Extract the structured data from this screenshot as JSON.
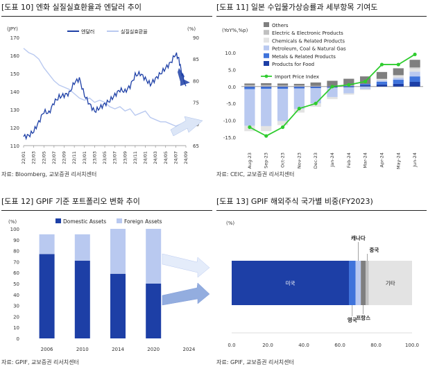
{
  "panels": {
    "p10": {
      "title": "[도표 10] 엔화 실질실효환율과 엔달러 추이",
      "source": "자료: Bloomberg, 교보증권 리서치센터"
    },
    "p11": {
      "title": "[도표 11] 일본 수입물가상승률과 세부항목 기여도",
      "source": "자료: CEIC, 교보증권 리서치센터"
    },
    "p12": {
      "title": "[도표 12] GPIF 기준 포트폴리오 변화 추이",
      "source": "자료: GPIF, 교보증권 리서치센터"
    },
    "p13": {
      "title": "[도표 13] GPIF 해외주식 국가별 비중(FY2023)",
      "source": "자료: GPIF, 교보증권 리서치센터"
    }
  },
  "colors": {
    "navy": "#1d3fa6",
    "light_blue": "#b9c9f0",
    "gray_dark": "#7f7f7f",
    "gray_mid": "#c0c0c0",
    "gray_light": "#e3e3e3",
    "blue_mid": "#3f73db",
    "green": "#2fcc2f",
    "arrow": "#a7bde9"
  },
  "chart_data": [
    {
      "type": "line",
      "id": "p10",
      "ylabel_left": "(JPY)",
      "ylabel_right": "(%)",
      "ylim_left": [
        110,
        170
      ],
      "ylim_right": [
        65,
        90
      ],
      "yticks_left": [
        "110",
        "120",
        "130",
        "140",
        "150",
        "160",
        "170"
      ],
      "yticks_right": [
        "65",
        "70",
        "75",
        "80",
        "85",
        "90"
      ],
      "xticks": [
        "22/01",
        "22/03",
        "22/05",
        "22/07",
        "22/09",
        "22/11",
        "23/01",
        "23/03",
        "23/05",
        "23/07",
        "23/09",
        "23/11",
        "24/01",
        "24/03",
        "24/05",
        "24/07",
        "24/09"
      ],
      "series": [
        {
          "name": "엔달러",
          "axis": "left",
          "x": [
            0,
            0.5,
            1,
            1.5,
            2,
            2.5,
            3,
            3.5,
            4,
            4.5,
            5,
            5.5,
            6,
            6.5,
            7,
            7.5,
            8,
            8.5,
            9,
            9.5,
            10,
            10.5,
            11,
            11.5,
            12,
            12.5,
            13,
            13.5,
            14,
            14.5,
            15,
            15.3,
            15.6,
            16
          ],
          "values": [
            115,
            115.5,
            118,
            123,
            129,
            128,
            134,
            137,
            138,
            139,
            145,
            147,
            138,
            133,
            129,
            131,
            133,
            135,
            138,
            141,
            140,
            143,
            149,
            150,
            147,
            144,
            147,
            150,
            153,
            156,
            161,
            158,
            150,
            143
          ]
        },
        {
          "name": "실질실효환율",
          "axis": "right",
          "x": [
            0,
            0.5,
            1,
            1.5,
            2,
            2.5,
            3,
            3.5,
            4,
            4.5,
            5,
            5.5,
            6,
            6.5,
            7,
            7.5,
            8,
            8.5,
            9,
            9.5,
            10,
            10.5,
            11,
            11.5,
            12,
            12.5,
            13,
            13.5,
            14,
            14.5,
            15,
            15.5,
            16
          ],
          "values": [
            87.5,
            86.5,
            86,
            85,
            83,
            81.5,
            80,
            79,
            78.5,
            78,
            77,
            76,
            75.5,
            76,
            75,
            75.5,
            75,
            74,
            73.5,
            74,
            73,
            73.5,
            72,
            72.5,
            73,
            71.5,
            71,
            70.5,
            70.5,
            70,
            69.5,
            70,
            70
          ]
        }
      ]
    },
    {
      "type": "bar",
      "id": "p11",
      "ylabel": "(YoY%,%p)",
      "ylim": [
        -15,
        10
      ],
      "yticks": [
        "10.0",
        "5.0",
        "0.0",
        "-5.0",
        "-10.0",
        "-15.0"
      ],
      "legend_position": "top",
      "categories": [
        "Aug-23",
        "Sep-23",
        "Oct-23",
        "Nov-23",
        "Dec-23",
        "Jan-24",
        "Feb-24",
        "Mar-24",
        "Apr-24",
        "May-24",
        "Jun-24"
      ],
      "series": [
        {
          "name": "Others",
          "values": [
            0.5,
            0.6,
            0.6,
            0.5,
            1.0,
            1.6,
            2.0,
            2.2,
            2.0,
            2.0,
            2.2
          ]
        },
        {
          "name": "Electric & Electronic Products",
          "values": [
            0.4,
            0.4,
            0.3,
            0.3,
            0.2,
            0.1,
            0.1,
            0.0,
            0.1,
            0.2,
            0.3
          ]
        },
        {
          "name": "Chemicals & Related Products",
          "values": [
            -1.6,
            -1.5,
            -1.2,
            -1.1,
            -1.0,
            -0.6,
            -0.4,
            -0.2,
            0.4,
            0.6,
            1.0
          ]
        },
        {
          "name": "Petroleum, Coal & Natural Gas",
          "values": [
            -10.8,
            -11.0,
            -9.5,
            -6.0,
            -4.5,
            -2.8,
            -1.8,
            -0.8,
            0.4,
            0.6,
            1.4
          ]
        },
        {
          "name": "Metals & Related Products",
          "values": [
            -0.6,
            -0.5,
            -0.5,
            -0.4,
            -0.3,
            0.0,
            0.2,
            0.4,
            0.8,
            1.2,
            1.6
          ]
        },
        {
          "name": "Products for Food",
          "values": [
            -0.2,
            -0.2,
            -0.2,
            -0.2,
            -0.2,
            -0.3,
            -0.2,
            0.4,
            0.6,
            0.8,
            1.4
          ]
        }
      ],
      "line": {
        "name": "Import Price Index",
        "values": [
          -12,
          -14.6,
          -12,
          -6.5,
          -5,
          0,
          0.5,
          1.5,
          6.5,
          6.5,
          9.5
        ]
      }
    },
    {
      "type": "bar",
      "id": "p12",
      "ylabel": "(%)",
      "ylim": [
        0,
        100
      ],
      "yticks": [
        "0",
        "10",
        "20",
        "30",
        "40",
        "50",
        "60",
        "70",
        "80",
        "90",
        "100"
      ],
      "categories": [
        "2006",
        "2010",
        "2014",
        "2020",
        "2024"
      ],
      "series": [
        {
          "name": "Domestic Assets",
          "values": [
            77,
            71,
            59,
            50,
            null
          ]
        },
        {
          "name": "Foreign Assets",
          "values": [
            18,
            24,
            41,
            50,
            null
          ]
        }
      ]
    },
    {
      "type": "bar",
      "id": "p13",
      "ylabel": "(%)",
      "xlim": [
        0,
        100
      ],
      "xticks": [
        "0.0",
        "20.0",
        "40.0",
        "60.0",
        "80.0",
        "100.0"
      ],
      "segments": [
        {
          "name": "미국",
          "value": 65.0
        },
        {
          "name": "영국",
          "value": 3.7
        },
        {
          "name": "캐나다",
          "value": 2.9
        },
        {
          "name": "프랑스",
          "value": 2.7
        },
        {
          "name": "중국",
          "value": 1.7
        },
        {
          "name": "기타",
          "value": 24.0
        }
      ]
    }
  ]
}
